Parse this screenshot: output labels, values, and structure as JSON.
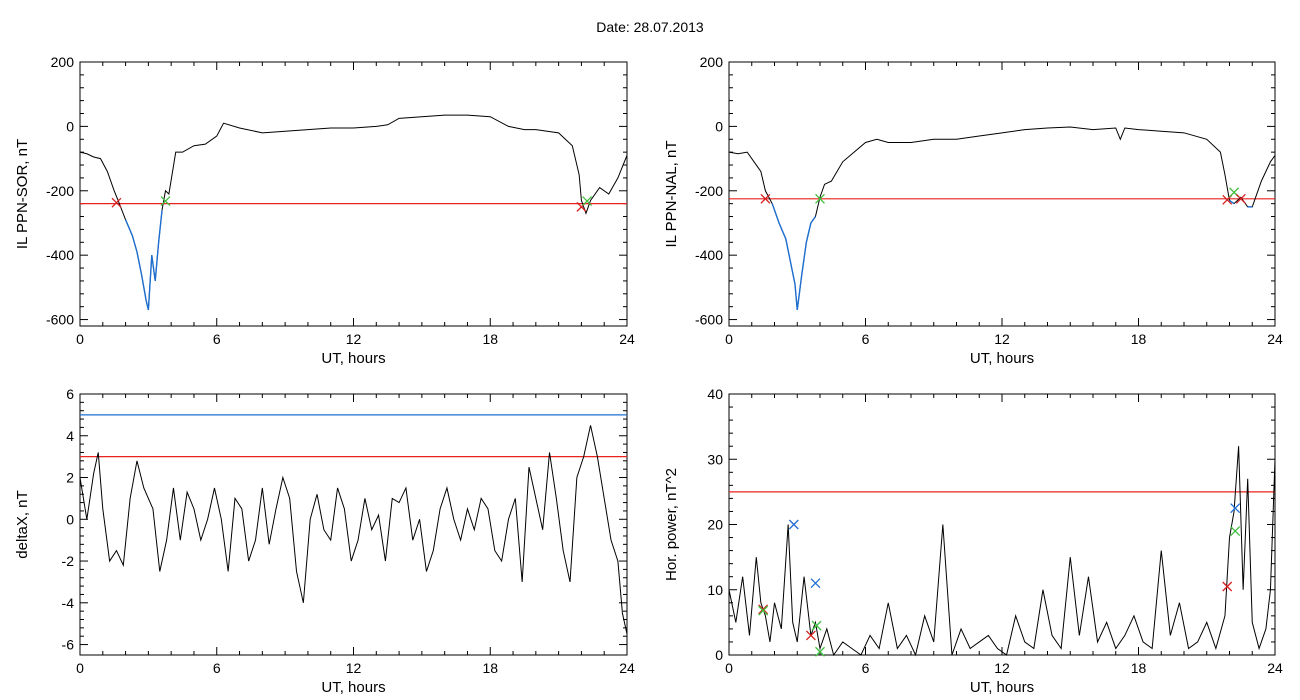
{
  "figure_title": "Date:  28.07.2013",
  "colors": {
    "main_line": "#000000",
    "threshold_red": "#e8221c",
    "threshold_blue": "#1f6fd1",
    "marker_red": "#d62020",
    "marker_green": "#3fbf3f",
    "marker_blue": "#1f6fd1"
  },
  "chart_data": [
    {
      "type": "line",
      "panel": "top-left",
      "ylabel": "IL PPN-SOR, nT",
      "xlabel": "UT, hours",
      "xlim": [
        0,
        24
      ],
      "ylim": [
        -620,
        200
      ],
      "xticks": [
        "0",
        "6",
        "12",
        "18",
        "24"
      ],
      "yticks": [
        "-600",
        "-400",
        "-200",
        "0",
        "200"
      ],
      "ytick_values": [
        -600,
        -400,
        -200,
        0,
        200
      ],
      "threshold": -240,
      "series": [
        {
          "x": [
            0,
            0.3,
            0.6,
            0.9,
            1.2,
            1.5,
            1.7,
            2.0,
            2.3,
            2.5,
            2.7,
            2.9,
            3.0,
            3.15,
            3.3,
            3.45,
            3.6,
            3.75,
            3.9,
            4.2,
            4.5,
            5.0,
            5.5,
            6.0,
            6.3,
            7.0,
            8.0,
            9.0,
            10.0,
            11.0,
            12.0,
            13.0,
            13.5,
            14.0,
            15.0,
            16.0,
            17.0,
            18.0,
            18.8,
            19.5,
            20.0,
            21.0,
            21.6,
            21.9,
            22.0,
            22.2,
            22.4,
            22.8,
            23.2,
            23.6,
            24.0
          ],
          "y": [
            -80,
            -85,
            -95,
            -100,
            -140,
            -200,
            -235,
            -290,
            -340,
            -390,
            -460,
            -540,
            -570,
            -400,
            -480,
            -360,
            -260,
            -200,
            -210,
            -80,
            -80,
            -60,
            -55,
            -30,
            10,
            -5,
            -20,
            -15,
            -10,
            -5,
            -5,
            0,
            5,
            25,
            30,
            35,
            35,
            30,
            0,
            -10,
            -10,
            -20,
            -60,
            -150,
            -230,
            -270,
            -230,
            -190,
            -210,
            -160,
            -90
          ]
        }
      ],
      "markers": [
        {
          "x": 1.6,
          "y": -237,
          "color": "red"
        },
        {
          "x": 3.75,
          "y": -232,
          "color": "green"
        },
        {
          "x": 22.0,
          "y": -250,
          "color": "red"
        },
        {
          "x": 22.25,
          "y": -232,
          "color": "green"
        }
      ]
    },
    {
      "type": "line",
      "panel": "top-right",
      "ylabel": "IL PPN-NAL, nT",
      "xlabel": "UT, hours",
      "xlim": [
        0,
        24
      ],
      "ylim": [
        -620,
        200
      ],
      "xticks": [
        "0",
        "6",
        "12",
        "18",
        "24"
      ],
      "yticks": [
        "-600",
        "-400",
        "-200",
        "0",
        "200"
      ],
      "ytick_values": [
        -600,
        -400,
        -200,
        0,
        200
      ],
      "threshold": -225,
      "series": [
        {
          "x": [
            0,
            0.4,
            0.8,
            1.1,
            1.4,
            1.6,
            1.9,
            2.2,
            2.5,
            2.7,
            2.9,
            3.0,
            3.2,
            3.4,
            3.6,
            3.8,
            4.0,
            4.2,
            4.5,
            5.0,
            5.5,
            6.0,
            6.5,
            7.0,
            8.0,
            9.0,
            10.0,
            11.0,
            12.0,
            13.0,
            14.0,
            15.0,
            16.0,
            17.0,
            17.2,
            17.4,
            18.0,
            19.0,
            20.0,
            21.0,
            21.6,
            21.8,
            22.0,
            22.2,
            22.5,
            22.8,
            23.0,
            23.4,
            23.8,
            24.0
          ],
          "y": [
            -80,
            -85,
            -80,
            -110,
            -140,
            -200,
            -240,
            -300,
            -350,
            -420,
            -490,
            -570,
            -460,
            -360,
            -300,
            -280,
            -220,
            -180,
            -170,
            -110,
            -80,
            -50,
            -40,
            -50,
            -50,
            -40,
            -40,
            -30,
            -20,
            -10,
            -5,
            -2,
            -10,
            -5,
            -40,
            -5,
            -10,
            -15,
            -20,
            -40,
            -80,
            -150,
            -230,
            -240,
            -220,
            -250,
            -250,
            -170,
            -110,
            -90
          ]
        }
      ],
      "markers": [
        {
          "x": 1.6,
          "y": -225,
          "color": "red"
        },
        {
          "x": 4.0,
          "y": -225,
          "color": "green"
        },
        {
          "x": 21.9,
          "y": -228,
          "color": "red"
        },
        {
          "x": 22.2,
          "y": -205,
          "color": "green"
        },
        {
          "x": 22.5,
          "y": -225,
          "color": "red"
        }
      ]
    },
    {
      "type": "line",
      "panel": "bottom-left",
      "ylabel": "deltaX, nT",
      "xlabel": "UT, hours",
      "xlim": [
        0,
        24
      ],
      "ylim": [
        -6.5,
        6
      ],
      "xticks": [
        "0",
        "6",
        "12",
        "18",
        "24"
      ],
      "yticks": [
        "-6",
        "-4",
        "-2",
        "0",
        "2",
        "4",
        "6"
      ],
      "ytick_values": [
        -6,
        -4,
        -2,
        0,
        2,
        4,
        6
      ],
      "thresholds": [
        {
          "value": 3,
          "color": "red"
        },
        {
          "value": 5,
          "color": "blue"
        }
      ],
      "series": [
        {
          "x": [
            0,
            0.3,
            0.6,
            0.8,
            1.0,
            1.3,
            1.6,
            1.9,
            2.2,
            2.5,
            2.8,
            3.2,
            3.5,
            3.8,
            4.1,
            4.4,
            4.7,
            5.0,
            5.3,
            5.6,
            5.9,
            6.2,
            6.5,
            6.8,
            7.1,
            7.4,
            7.7,
            8.0,
            8.3,
            8.6,
            8.9,
            9.2,
            9.5,
            9.8,
            10.1,
            10.4,
            10.7,
            11.0,
            11.3,
            11.6,
            11.9,
            12.2,
            12.5,
            12.8,
            13.1,
            13.4,
            13.7,
            14.0,
            14.3,
            14.6,
            14.9,
            15.2,
            15.5,
            15.8,
            16.1,
            16.4,
            16.7,
            17.0,
            17.3,
            17.6,
            17.9,
            18.2,
            18.5,
            18.8,
            19.1,
            19.4,
            19.7,
            20.0,
            20.3,
            20.6,
            20.9,
            21.2,
            21.5,
            21.8,
            22.1,
            22.4,
            22.7,
            23.0,
            23.3,
            23.6,
            23.8,
            24.0
          ],
          "y": [
            2.0,
            0.0,
            2.2,
            3.2,
            0.5,
            -2.0,
            -1.5,
            -2.2,
            1.0,
            2.8,
            1.5,
            0.5,
            -2.5,
            -1.0,
            1.5,
            -1.0,
            1.3,
            0.5,
            -1.0,
            0.0,
            1.5,
            0.0,
            -2.5,
            1.0,
            0.5,
            -2.0,
            -1.0,
            1.5,
            -1.2,
            0.5,
            2.0,
            1.0,
            -2.5,
            -4.0,
            0.0,
            1.2,
            -0.5,
            -1.0,
            1.5,
            0.5,
            -2.0,
            -1.0,
            1.0,
            -0.5,
            0.2,
            -2.0,
            1.0,
            0.8,
            1.5,
            -1.0,
            0.0,
            -2.5,
            -1.5,
            0.5,
            1.5,
            0.0,
            -1.0,
            0.5,
            -0.5,
            1.0,
            0.5,
            -1.5,
            -2.0,
            0.0,
            1.0,
            -3.0,
            2.5,
            1.0,
            -0.5,
            3.2,
            1.0,
            -1.5,
            -3.0,
            2.0,
            3.0,
            4.5,
            3.0,
            1.0,
            -1.0,
            -2.0,
            -4.5,
            -5.5
          ]
        }
      ]
    },
    {
      "type": "line",
      "panel": "bottom-right",
      "ylabel": "Hor. power, nT^2",
      "xlabel": "UT, hours",
      "xlim": [
        0,
        24
      ],
      "ylim": [
        0,
        40
      ],
      "xticks": [
        "0",
        "6",
        "12",
        "18",
        "24"
      ],
      "yticks": [
        "0",
        "10",
        "20",
        "30",
        "40"
      ],
      "ytick_values": [
        0,
        10,
        20,
        30,
        40
      ],
      "threshold": 25,
      "series": [
        {
          "x": [
            0,
            0.3,
            0.6,
            0.9,
            1.2,
            1.4,
            1.6,
            1.8,
            2.0,
            2.3,
            2.6,
            2.8,
            3.0,
            3.3,
            3.6,
            3.8,
            4.0,
            4.3,
            4.6,
            5.0,
            5.4,
            5.8,
            6.2,
            6.6,
            7.0,
            7.4,
            7.8,
            8.2,
            8.6,
            9.0,
            9.4,
            9.8,
            10.2,
            10.6,
            11.0,
            11.4,
            11.8,
            12.2,
            12.6,
            13.0,
            13.4,
            13.8,
            14.2,
            14.6,
            15.0,
            15.4,
            15.8,
            16.2,
            16.6,
            17.0,
            17.4,
            17.8,
            18.2,
            18.6,
            19.0,
            19.4,
            19.8,
            20.2,
            20.6,
            21.0,
            21.4,
            21.8,
            22.0,
            22.2,
            22.4,
            22.6,
            22.8,
            23.0,
            23.3,
            23.6,
            23.8,
            24.0
          ],
          "y": [
            10,
            5,
            12,
            3,
            15,
            8,
            6,
            2,
            8,
            4,
            20,
            5,
            2,
            12,
            3,
            5,
            1,
            4,
            0,
            2,
            1,
            0,
            3,
            1,
            8,
            1,
            3,
            0,
            6,
            2,
            20,
            0,
            4,
            1,
            2,
            3,
            1,
            0,
            6,
            2,
            1,
            10,
            3,
            1,
            15,
            3,
            12,
            2,
            5,
            1,
            3,
            6,
            2,
            1,
            16,
            3,
            8,
            1,
            2,
            5,
            1,
            6,
            18,
            22,
            32,
            10,
            27,
            5,
            1,
            4,
            10,
            30
          ]
        }
      ],
      "markers": [
        {
          "x": 1.5,
          "y": 7,
          "color": "red"
        },
        {
          "x": 1.5,
          "y": 6.8,
          "color": "green"
        },
        {
          "x": 2.85,
          "y": 20,
          "color": "blue"
        },
        {
          "x": 3.6,
          "y": 3,
          "color": "red"
        },
        {
          "x": 3.8,
          "y": 11,
          "color": "blue"
        },
        {
          "x": 3.85,
          "y": 4.5,
          "color": "green"
        },
        {
          "x": 4.0,
          "y": 0.5,
          "color": "green"
        },
        {
          "x": 21.9,
          "y": 10.5,
          "color": "red"
        },
        {
          "x": 22.25,
          "y": 22.5,
          "color": "blue"
        },
        {
          "x": 22.25,
          "y": 19,
          "color": "green"
        }
      ]
    }
  ]
}
